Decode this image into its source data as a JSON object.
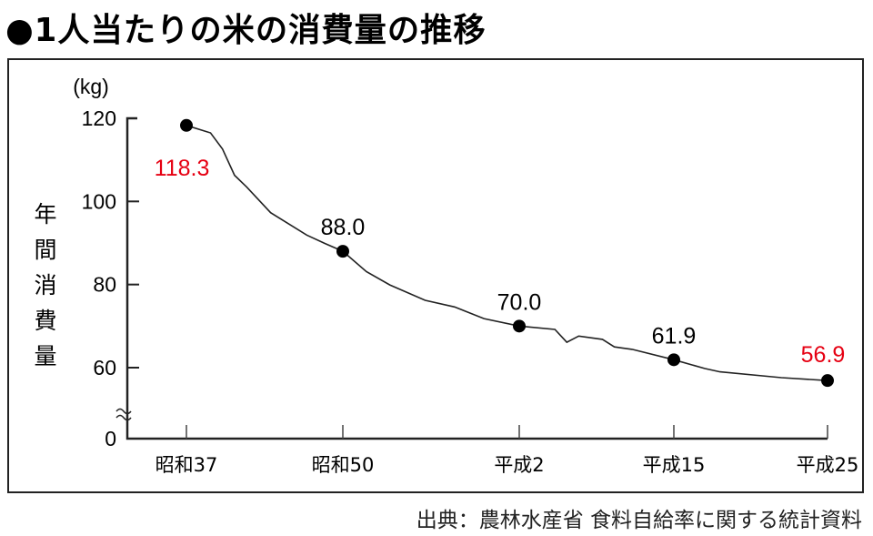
{
  "title": "●1人当たりの米の消費量の推移",
  "source": "出典：農林水産省 食料自給率に関する統計資料",
  "chart_data": {
    "type": "line",
    "title": "1人当たりの米の消費量の推移",
    "ylabel": "年間消費量",
    "yunit": "(kg)",
    "xlabel": "",
    "ylim": [
      0,
      120
    ],
    "axis_break": [
      0,
      50
    ],
    "yticks": [
      0,
      60,
      80,
      100,
      120
    ],
    "grid": false,
    "categories": [
      "昭和37",
      "昭和50",
      "平成2",
      "平成15",
      "平成25"
    ],
    "category_years": [
      1962,
      1975,
      1990,
      2003,
      2013
    ],
    "highlighted": [
      {
        "year": 1962,
        "value": 118.3,
        "label": "118.3",
        "color": "#e60012"
      },
      {
        "year": 1975,
        "value": 88.0,
        "label": "88.0",
        "color": "#000000"
      },
      {
        "year": 1990,
        "value": 70.0,
        "label": "70.0",
        "color": "#000000"
      },
      {
        "year": 2003,
        "value": 61.9,
        "label": "61.9",
        "color": "#000000"
      },
      {
        "year": 2013,
        "value": 56.9,
        "label": "56.9",
        "color": "#e60012"
      }
    ],
    "series": [
      {
        "name": "年間消費量",
        "x": [
          1962,
          1964,
          1965,
          1966,
          1967,
          1969,
          1972,
          1973.5,
          1975,
          1977,
          1979,
          1982,
          1984.5,
          1987,
          1990,
          1993,
          1994,
          1995,
          1997,
          1998,
          1999.5,
          2003,
          2005,
          2006,
          2010,
          2013
        ],
        "values": [
          118.3,
          116.5,
          112.6,
          106.3,
          103.5,
          97.3,
          91.9,
          89.9,
          88.0,
          83.1,
          79.9,
          76.2,
          74.6,
          71.8,
          70.0,
          69.2,
          66.1,
          67.6,
          66.8,
          65.0,
          64.4,
          61.9,
          59.8,
          59.0,
          57.6,
          56.9
        ]
      }
    ]
  }
}
